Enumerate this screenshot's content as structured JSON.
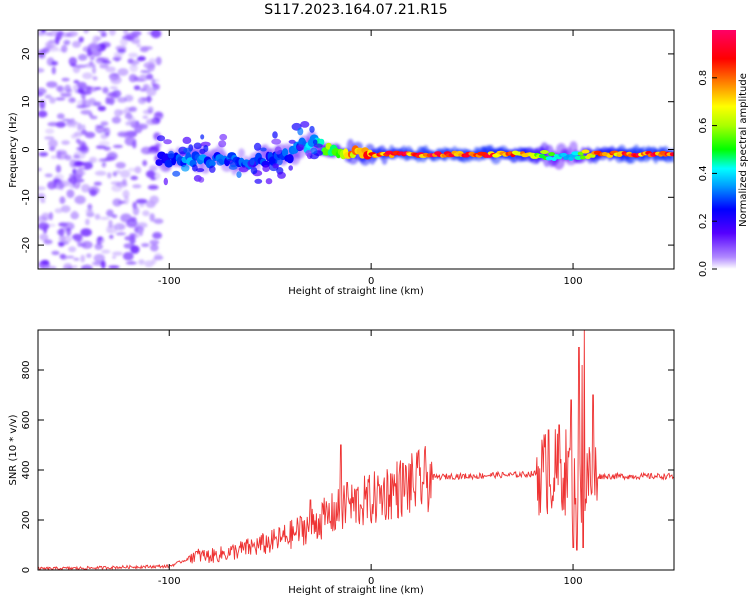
{
  "title": "S117.2023.164.07.21.R15",
  "chart_data": [
    {
      "type": "heatmap",
      "xlabel": "Height of straight line (km)",
      "ylabel": "Frequency (Hz)",
      "xlim": [
        -165,
        150
      ],
      "ylim": [
        -25,
        25
      ],
      "xticks": [
        -100,
        0,
        100
      ],
      "yticks": [
        -20,
        -10,
        0,
        10,
        20
      ],
      "colorbar": {
        "label": "Normalized spectral amplitude",
        "range": [
          0.0,
          1.0
        ],
        "ticks": [
          "0.0",
          "0.2",
          "0.4",
          "0.6",
          "0.8"
        ]
      },
      "noise_region": {
        "x_range": [
          -165,
          -105
        ],
        "f_range": [
          -25,
          25
        ],
        "amplitude": 0.1
      },
      "ridge": [
        {
          "x": -105,
          "f": -2.0,
          "amp": 0.25
        },
        {
          "x": -90,
          "f": -2.0,
          "amp": 0.35
        },
        {
          "x": -75,
          "f": -2.0,
          "amp": 0.3
        },
        {
          "x": -60,
          "f": -2.5,
          "amp": 0.3
        },
        {
          "x": -50,
          "f": -2.0,
          "amp": 0.3
        },
        {
          "x": -40,
          "f": -1.0,
          "amp": 0.3
        },
        {
          "x": -30,
          "f": 1.5,
          "amp": 0.4
        },
        {
          "x": -20,
          "f": 0.0,
          "amp": 0.6
        },
        {
          "x": -10,
          "f": -0.5,
          "amp": 0.75
        },
        {
          "x": 0,
          "f": -1.0,
          "amp": 0.85
        },
        {
          "x": 25,
          "f": -1.0,
          "amp": 0.9
        },
        {
          "x": 50,
          "f": -1.0,
          "amp": 0.9
        },
        {
          "x": 75,
          "f": -1.0,
          "amp": 0.85
        },
        {
          "x": 90,
          "f": -1.5,
          "amp": 0.5
        },
        {
          "x": 100,
          "f": -1.0,
          "amp": 0.4
        },
        {
          "x": 110,
          "f": -1.0,
          "amp": 0.8
        },
        {
          "x": 130,
          "f": -1.0,
          "amp": 0.9
        },
        {
          "x": 150,
          "f": -1.0,
          "amp": 0.9
        }
      ]
    },
    {
      "type": "line",
      "xlabel": "Height of straight line (km)",
      "ylabel": "SNR (10 * v/v)",
      "xlim": [
        -165,
        150
      ],
      "ylim": [
        0,
        960
      ],
      "xticks": [
        -100,
        0,
        100
      ],
      "yticks": [
        0,
        200,
        400,
        600,
        800
      ],
      "color": "#ee3333",
      "series": [
        {
          "x": [
            -165,
            -140,
            -120,
            -100,
            -92,
            -88,
            -80,
            -70,
            -60,
            -50,
            -40,
            -30,
            -20,
            -10,
            0,
            10,
            20,
            30,
            40,
            50,
            60,
            70,
            80,
            90,
            95,
            100,
            103,
            105,
            107,
            110,
            112,
            120,
            130,
            140,
            150
          ],
          "values": [
            5,
            8,
            12,
            15,
            40,
            60,
            55,
            70,
            90,
            110,
            140,
            180,
            220,
            260,
            280,
            320,
            340,
            370,
            375,
            375,
            380,
            380,
            385,
            390,
            400,
            380,
            350,
            300,
            360,
            370,
            375,
            375,
            375,
            375,
            375
          ]
        }
      ],
      "spikes": [
        {
          "x": -30,
          "y": 280
        },
        {
          "x": -15,
          "y": 500
        },
        {
          "x": -12,
          "y": 350
        },
        {
          "x": 88,
          "y": 560
        },
        {
          "x": 93,
          "y": 580
        },
        {
          "x": 99,
          "y": 680
        },
        {
          "x": 103,
          "y": 890
        },
        {
          "x": 104.5,
          "y": 820
        },
        {
          "x": 105.5,
          "y": 960
        },
        {
          "x": 110,
          "y": 700
        }
      ],
      "dips": [
        {
          "x": 100,
          "y": 90
        },
        {
          "x": 102,
          "y": 80
        },
        {
          "x": 105,
          "y": 90
        }
      ]
    }
  ]
}
